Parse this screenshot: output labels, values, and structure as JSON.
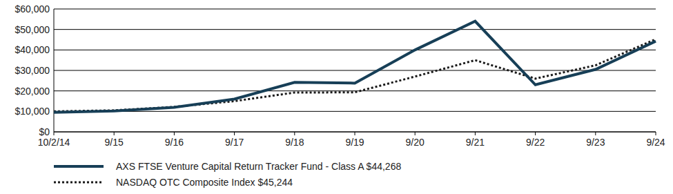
{
  "chart_data": {
    "type": "line",
    "categories": [
      "10/2/14",
      "9/15",
      "9/16",
      "9/17",
      "9/18",
      "9/19",
      "9/20",
      "9/21",
      "9/22",
      "9/23",
      "9/24"
    ],
    "series": [
      {
        "name": "AXS FTSE Venture Capital Return Tracker Fund - Class A $44,268",
        "color": "#173f57",
        "line_style": "solid",
        "values": [
          9500,
          10200,
          12000,
          16000,
          24200,
          23800,
          40000,
          54000,
          23000,
          30500,
          44268
        ]
      },
      {
        "name": "NASDAQ OTC Composite Index $45,244",
        "color": "#1a1a1a",
        "line_style": "dotted",
        "values": [
          10000,
          10500,
          12200,
          15000,
          19200,
          19300,
          27000,
          35000,
          26000,
          32500,
          45244
        ]
      }
    ],
    "ylim": [
      0,
      60000
    ],
    "yticks": [
      {
        "value": 0,
        "label": "$0"
      },
      {
        "value": 10000,
        "label": "$10,000"
      },
      {
        "value": 20000,
        "label": "$20,000"
      },
      {
        "value": 30000,
        "label": "$30,000"
      },
      {
        "value": 40000,
        "label": "$40,000"
      },
      {
        "value": 50000,
        "label": "$50,000"
      },
      {
        "value": 60000,
        "label": "$60,000"
      }
    ],
    "grid": true,
    "legend": "bottom"
  }
}
